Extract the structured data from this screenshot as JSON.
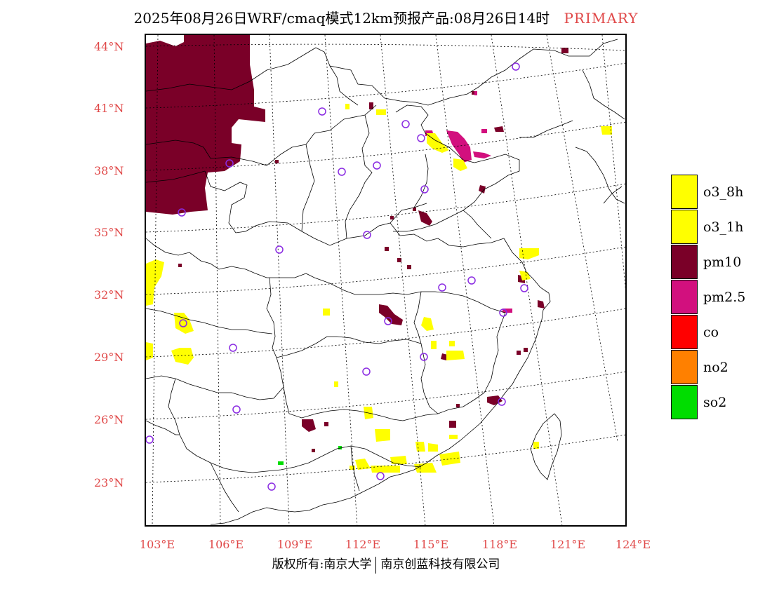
{
  "title": {
    "main": "2025年08月26日WRF/cmaq模式12km预报产品:08月26日14时",
    "tag": "PRIMARY"
  },
  "footer": {
    "left": "版权所有:南京大学",
    "right": "南京创蓝科技有限公司"
  },
  "map": {
    "projection": "lambert conformal",
    "lat_labels": [
      "44°N",
      "41°N",
      "38°N",
      "35°N",
      "32°N",
      "29°N",
      "26°N",
      "23°N"
    ],
    "lon_labels": [
      "103°E",
      "106°E",
      "109°E",
      "112°E",
      "115°E",
      "118°E",
      "121°E",
      "124°E"
    ],
    "station_marker": "circle",
    "station_color": "#8a2be2"
  },
  "legend": {
    "items": [
      {
        "label": "o3_8h",
        "color": "#ffff00"
      },
      {
        "label": "o3_1h",
        "color": "#ffff00"
      },
      {
        "label": "pm10",
        "color": "#7a0028"
      },
      {
        "label": "pm2.5",
        "color": "#d2107e"
      },
      {
        "label": "co",
        "color": "#ff0000"
      },
      {
        "label": "no2",
        "color": "#ff8000"
      },
      {
        "label": "so2",
        "color": "#00dd00"
      }
    ]
  },
  "pollutant_colors": {
    "o3": "#ffff00",
    "pm10": "#7a0028",
    "pm25": "#d2107e",
    "so2": "#00dd00"
  }
}
